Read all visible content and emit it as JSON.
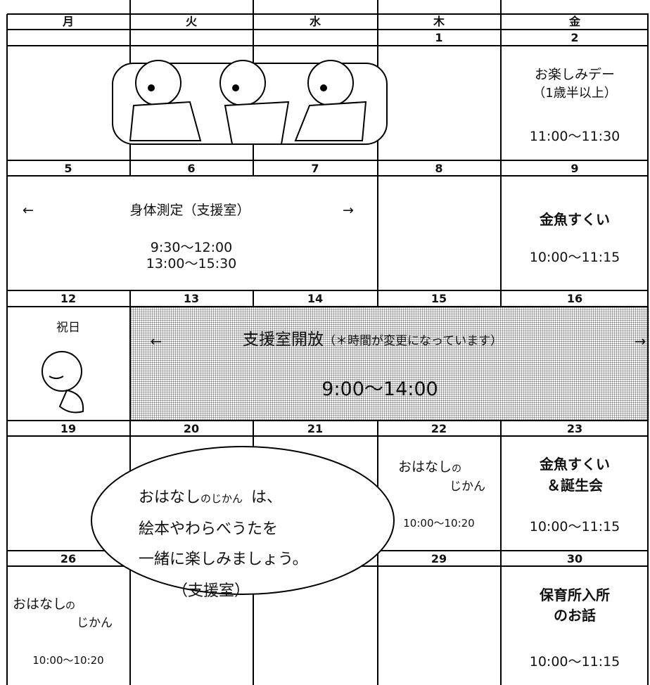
{
  "header": {
    "days": [
      "月",
      "火",
      "水",
      "木",
      "金"
    ]
  },
  "weeks": [
    {
      "dates": [
        null,
        null,
        null,
        "1",
        "2"
      ],
      "friday": {
        "lines": [
          "お楽しみデー",
          "（1歳半以上）"
        ],
        "time": "11:00～11:30"
      }
    },
    {
      "dates": [
        "5",
        "6",
        "7",
        "8",
        "9"
      ],
      "span": {
        "left": "←",
        "title": "身体測定（支援室）",
        "right": "→",
        "times": [
          "9:30～12:00",
          "13:00～15:30"
        ]
      },
      "friday": {
        "title": "金魚すくい",
        "time": "10:00～11:15"
      }
    },
    {
      "dates": [
        "12",
        "13",
        "14",
        "15",
        "16"
      ],
      "monday": {
        "label": "祝日"
      },
      "span": {
        "left": "←",
        "title": "支援室開放",
        "note": "（＊時間が変更になっています）",
        "right": "→",
        "time": "9:00～14:00"
      }
    },
    {
      "dates": [
        "19",
        "20",
        "21",
        "22",
        "23"
      ],
      "thursday": {
        "lines": [
          "おはなし",
          "の",
          "じかん"
        ],
        "time": "10:00～10:20"
      },
      "friday": {
        "lines": [
          "金魚すくい",
          "＆誕生会"
        ],
        "time": "10:00～11:15"
      }
    },
    {
      "dates": [
        "26",
        null,
        null,
        "29",
        "30"
      ],
      "monday": {
        "lines": [
          "おはなし",
          "の",
          "じかん"
        ],
        "time": "10:00～10:20"
      },
      "friday": {
        "lines": [
          "保育所入所",
          "のお話"
        ],
        "time": "10:00～11:15"
      }
    }
  ],
  "bubble": {
    "lines": [
      "おはなし",
      "のじかん",
      "は、",
      "絵本やわらべうたを",
      "一緒に楽しみましょう。",
      "（支援室）"
    ]
  }
}
